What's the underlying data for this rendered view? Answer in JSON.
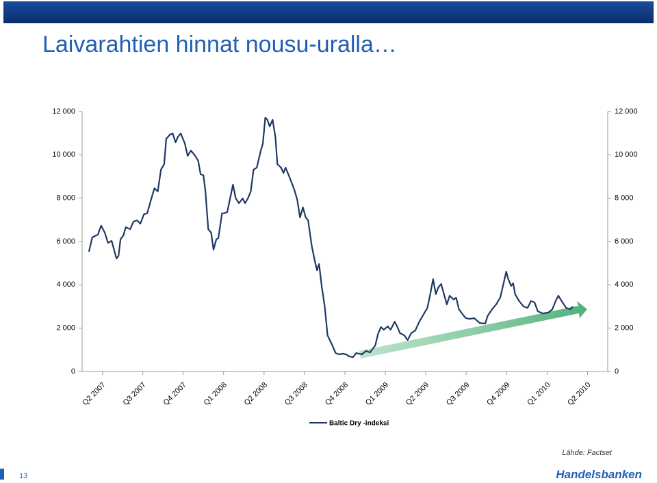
{
  "slide": {
    "title": "Laivarahtien hinnat nousu-uralla…",
    "page_number": "13",
    "source": "Lähde: Factset",
    "logo": "Handelsbanken"
  },
  "chart_data": {
    "type": "line",
    "x": [
      -0.33,
      -0.25,
      -0.11,
      -0.03,
      0.06,
      0.14,
      0.23,
      0.35,
      0.4,
      0.45,
      0.52,
      0.58,
      0.69,
      0.77,
      0.86,
      0.94,
      1.03,
      1.11,
      1.2,
      1.29,
      1.37,
      1.45,
      1.53,
      1.58,
      1.67,
      1.74,
      1.81,
      1.87,
      1.94,
      2.04,
      2.11,
      2.19,
      2.3,
      2.37,
      2.43,
      2.5,
      2.55,
      2.62,
      2.69,
      2.75,
      2.82,
      2.87,
      2.96,
      3.01,
      3.09,
      3.16,
      3.23,
      3.3,
      3.38,
      3.47,
      3.53,
      3.6,
      3.67,
      3.74,
      3.82,
      3.92,
      3.97,
      4.03,
      4.08,
      4.14,
      4.21,
      4.28,
      4.33,
      4.42,
      4.48,
      4.53,
      4.6,
      4.67,
      4.75,
      4.82,
      4.89,
      4.96,
      5.03,
      5.09,
      5.18,
      5.25,
      5.31,
      5.36,
      5.43,
      5.5,
      5.57,
      5.69,
      5.77,
      5.86,
      5.94,
      6.03,
      6.11,
      6.2,
      6.28,
      6.42,
      6.52,
      6.62,
      6.75,
      6.82,
      6.89,
      6.96,
      7.06,
      7.13,
      7.23,
      7.3,
      7.36,
      7.47,
      7.55,
      7.64,
      7.74,
      7.84,
      7.94,
      8.04,
      8.11,
      8.18,
      8.25,
      8.31,
      8.38,
      8.45,
      8.52,
      8.59,
      8.69,
      8.75,
      8.82,
      8.92,
      8.99,
      9.08,
      9.2,
      9.33,
      9.47,
      9.53,
      9.64,
      9.74,
      9.84,
      9.92,
      9.99,
      10.04,
      10.11,
      10.16,
      10.21,
      10.31,
      10.42,
      10.52,
      10.6,
      10.69,
      10.77,
      10.89,
      11.03,
      11.13,
      11.21,
      11.28,
      11.36,
      11.47,
      11.57,
      11.64
    ],
    "series": [
      {
        "name": "Baltic Dry -indeksi",
        "color": "#1f3864",
        "values": [
          5530,
          6190,
          6320,
          6730,
          6410,
          5940,
          6030,
          5210,
          5340,
          6100,
          6280,
          6660,
          6570,
          6920,
          6980,
          6820,
          7260,
          7300,
          7900,
          8460,
          8310,
          9320,
          9570,
          10740,
          10930,
          10990,
          10580,
          10830,
          10990,
          10520,
          9950,
          10200,
          9950,
          9730,
          9100,
          9060,
          8310,
          6570,
          6410,
          5620,
          6100,
          6160,
          7300,
          7300,
          7360,
          7990,
          8620,
          7990,
          7770,
          7990,
          7770,
          7990,
          8310,
          9320,
          9410,
          10200,
          10520,
          11720,
          11620,
          11310,
          11620,
          10830,
          9570,
          9410,
          9160,
          9410,
          9100,
          8780,
          8370,
          7930,
          7110,
          7580,
          7110,
          6980,
          5780,
          5150,
          4670,
          4960,
          3880,
          3000,
          1670,
          1200,
          850,
          790,
          820,
          790,
          690,
          660,
          850,
          790,
          950,
          880,
          1200,
          1740,
          2050,
          1930,
          2080,
          1930,
          2300,
          2050,
          1770,
          1670,
          1450,
          1770,
          1890,
          2300,
          2620,
          2940,
          3570,
          4260,
          3570,
          3880,
          4040,
          3570,
          3090,
          3500,
          3320,
          3410,
          2870,
          2620,
          2460,
          2430,
          2460,
          2240,
          2210,
          2560,
          2870,
          3090,
          3410,
          4040,
          4610,
          4260,
          3950,
          4070,
          3570,
          3250,
          3000,
          2940,
          3250,
          3190,
          2780,
          2680,
          2720,
          2870,
          3250,
          3500,
          3250,
          2940,
          2870,
          3000
        ]
      }
    ],
    "xlim": [
      -0.5,
      12.5
    ],
    "xticks": [
      {
        "value": 0,
        "label": "Q2 2007"
      },
      {
        "value": 1,
        "label": "Q3 2007"
      },
      {
        "value": 2,
        "label": "Q4 2007"
      },
      {
        "value": 3,
        "label": "Q1 2008"
      },
      {
        "value": 4,
        "label": "Q2 2008"
      },
      {
        "value": 5,
        "label": "Q3 2008"
      },
      {
        "value": 6,
        "label": "Q4 2008"
      },
      {
        "value": 7,
        "label": "Q1 2009"
      },
      {
        "value": 8,
        "label": "Q2 2009"
      },
      {
        "value": 9,
        "label": "Q3 2009"
      },
      {
        "value": 10,
        "label": "Q4 2009"
      },
      {
        "value": 11,
        "label": "Q1 2010"
      },
      {
        "value": 12,
        "label": "Q2 2010"
      }
    ],
    "ylim": [
      0,
      12000
    ],
    "yticks": [
      0,
      {
        "value": 2000,
        "label": "2 000"
      },
      {
        "value": 4000,
        "label": "4 000"
      },
      {
        "value": 6000,
        "label": "6 000"
      },
      {
        "value": 8000,
        "label": "8 000"
      },
      {
        "value": 10000,
        "label": "10 000"
      },
      {
        "value": 12000,
        "label": "12 000"
      }
    ],
    "legend": "bottom"
  }
}
